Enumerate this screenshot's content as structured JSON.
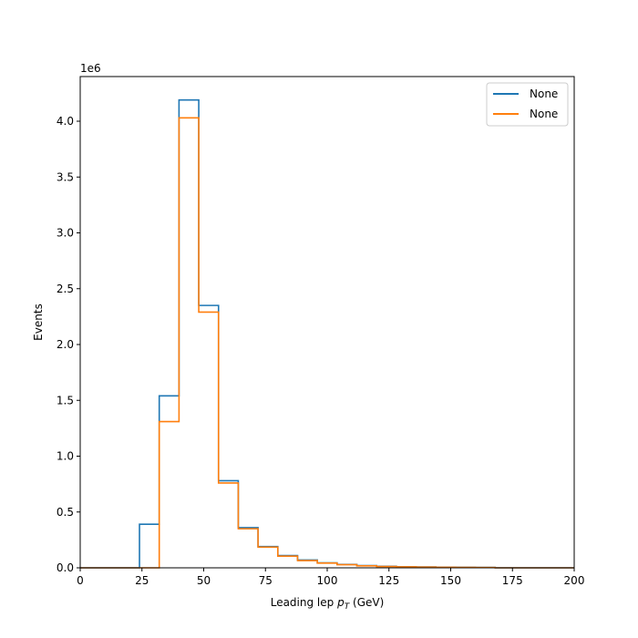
{
  "chart_data": {
    "type": "histogram",
    "title": "",
    "xlabel_main": "Leading lep ",
    "xlabel_sym": "p",
    "xlabel_sub": "T",
    "xlabel_unit": " (GeV)",
    "ylabel": "Events",
    "y_scale_label": "1e6",
    "xlim": [
      0,
      200
    ],
    "ylim": [
      0,
      4.4
    ],
    "xticks": [
      0,
      25,
      50,
      75,
      100,
      125,
      150,
      175,
      200
    ],
    "xtick_labels": [
      "0",
      "25",
      "50",
      "75",
      "100",
      "125",
      "150",
      "175",
      "200"
    ],
    "yticks": [
      0,
      0.5,
      1.0,
      1.5,
      2.0,
      2.5,
      3.0,
      3.5,
      4.0
    ],
    "ytick_labels": [
      "0.0",
      "0.5",
      "1.0",
      "1.5",
      "2.0",
      "2.5",
      "3.0",
      "3.5",
      "4.0"
    ],
    "bin_edges": [
      0,
      8,
      16,
      24,
      32,
      40,
      48,
      56,
      64,
      72,
      80,
      88,
      96,
      104,
      112,
      120,
      128,
      136,
      144,
      152,
      160,
      168,
      176,
      184,
      192,
      200
    ],
    "legend_position": "upper-right",
    "series": [
      {
        "name": "None",
        "color": "#1f77b4",
        "values": [
          0,
          0,
          0,
          0.39,
          1.54,
          4.19,
          2.35,
          0.78,
          0.36,
          0.19,
          0.11,
          0.07,
          0.045,
          0.03,
          0.02,
          0.014,
          0.01,
          0.008,
          0.006,
          0.005,
          0.004,
          0,
          0,
          0,
          0
        ]
      },
      {
        "name": "None",
        "color": "#ff7f0e",
        "values": [
          0,
          0,
          0,
          0,
          1.31,
          4.03,
          2.29,
          0.76,
          0.35,
          0.185,
          0.105,
          0.065,
          0.042,
          0.028,
          0.018,
          0.012,
          0.009,
          0.007,
          0.005,
          0.004,
          0.003,
          0,
          0,
          0,
          0
        ]
      }
    ]
  }
}
